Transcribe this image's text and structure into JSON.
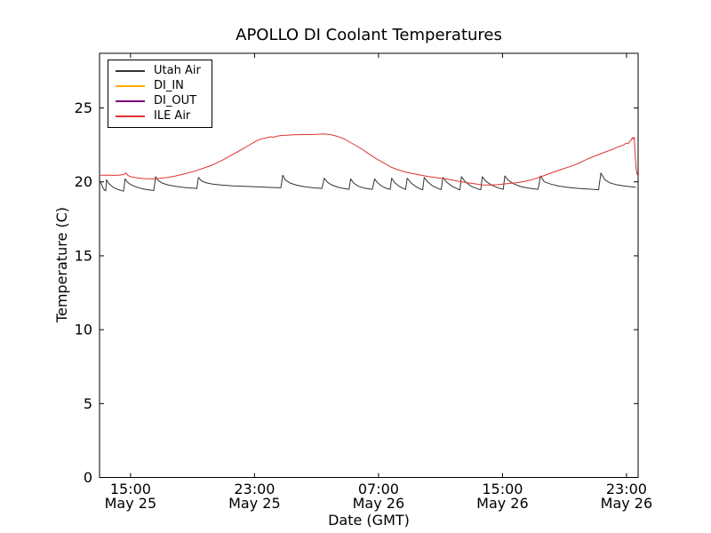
{
  "chart_data": {
    "type": "line",
    "title": "APOLLO DI Coolant Temperatures",
    "xlabel": "Date (GMT)",
    "ylabel": "Temperature (C)",
    "x_unit": "hours since May 25 00:00 GMT",
    "xlim": [
      13.0,
      47.75
    ],
    "ylim": [
      0,
      28.7
    ],
    "grid": false,
    "legend_position": "upper left",
    "yticks": [
      0,
      5,
      10,
      15,
      20,
      25
    ],
    "xticks": [
      {
        "t": 15,
        "time": "15:00",
        "date": "May 25"
      },
      {
        "t": 23,
        "time": "23:00",
        "date": "May 25"
      },
      {
        "t": 31,
        "time": "07:00",
        "date": "May 26"
      },
      {
        "t": 39,
        "time": "15:00",
        "date": "May 26"
      },
      {
        "t": 47,
        "time": "23:00",
        "date": "May 26"
      }
    ],
    "series": [
      {
        "name": "Utah Air",
        "color": "#333333",
        "points": [
          [
            13.05,
            20.05
          ],
          [
            13.12,
            19.85
          ],
          [
            13.22,
            19.6
          ],
          [
            13.32,
            19.45
          ],
          [
            13.4,
            19.4
          ],
          [
            13.45,
            20.15
          ],
          [
            13.55,
            19.95
          ],
          [
            13.7,
            19.8
          ],
          [
            13.9,
            19.62
          ],
          [
            14.15,
            19.5
          ],
          [
            14.45,
            19.4
          ],
          [
            14.55,
            19.37
          ],
          [
            14.65,
            20.2
          ],
          [
            14.8,
            19.98
          ],
          [
            15.0,
            19.82
          ],
          [
            15.3,
            19.68
          ],
          [
            15.7,
            19.55
          ],
          [
            16.1,
            19.47
          ],
          [
            16.5,
            19.42
          ],
          [
            16.62,
            20.35
          ],
          [
            16.8,
            20.08
          ],
          [
            17.05,
            19.92
          ],
          [
            17.4,
            19.8
          ],
          [
            17.9,
            19.7
          ],
          [
            18.5,
            19.62
          ],
          [
            19.1,
            19.57
          ],
          [
            19.28,
            19.55
          ],
          [
            19.38,
            20.3
          ],
          [
            19.6,
            20.05
          ],
          [
            19.9,
            19.93
          ],
          [
            20.3,
            19.85
          ],
          [
            20.9,
            19.78
          ],
          [
            21.6,
            19.73
          ],
          [
            22.4,
            19.7
          ],
          [
            23.3,
            19.66
          ],
          [
            24.2,
            19.62
          ],
          [
            24.7,
            19.6
          ],
          [
            24.82,
            20.45
          ],
          [
            25.0,
            20.12
          ],
          [
            25.3,
            19.92
          ],
          [
            25.7,
            19.78
          ],
          [
            26.2,
            19.68
          ],
          [
            26.8,
            19.6
          ],
          [
            27.35,
            19.56
          ],
          [
            27.5,
            20.25
          ],
          [
            27.7,
            19.98
          ],
          [
            28.0,
            19.78
          ],
          [
            28.4,
            19.63
          ],
          [
            28.8,
            19.55
          ],
          [
            29.1,
            19.5
          ],
          [
            29.2,
            20.2
          ],
          [
            29.4,
            19.92
          ],
          [
            29.7,
            19.7
          ],
          [
            30.1,
            19.57
          ],
          [
            30.6,
            19.5
          ],
          [
            30.75,
            20.2
          ],
          [
            30.95,
            19.93
          ],
          [
            31.2,
            19.72
          ],
          [
            31.5,
            19.57
          ],
          [
            31.75,
            19.5
          ],
          [
            31.85,
            20.25
          ],
          [
            32.05,
            19.95
          ],
          [
            32.3,
            19.72
          ],
          [
            32.6,
            19.55
          ],
          [
            32.75,
            19.5
          ],
          [
            32.85,
            20.25
          ],
          [
            33.1,
            19.93
          ],
          [
            33.4,
            19.68
          ],
          [
            33.75,
            19.5
          ],
          [
            33.85,
            19.47
          ],
          [
            33.95,
            20.3
          ],
          [
            34.2,
            19.97
          ],
          [
            34.5,
            19.72
          ],
          [
            34.9,
            19.53
          ],
          [
            35.05,
            19.48
          ],
          [
            35.15,
            20.3
          ],
          [
            35.4,
            19.98
          ],
          [
            35.75,
            19.7
          ],
          [
            36.15,
            19.5
          ],
          [
            36.25,
            19.46
          ],
          [
            36.35,
            20.35
          ],
          [
            36.6,
            20.0
          ],
          [
            36.95,
            19.72
          ],
          [
            37.4,
            19.52
          ],
          [
            37.6,
            19.47
          ],
          [
            37.7,
            20.35
          ],
          [
            37.95,
            20.02
          ],
          [
            38.3,
            19.78
          ],
          [
            38.75,
            19.58
          ],
          [
            39.05,
            19.5
          ],
          [
            39.15,
            20.4
          ],
          [
            39.4,
            20.08
          ],
          [
            39.75,
            19.85
          ],
          [
            40.2,
            19.68
          ],
          [
            40.8,
            19.56
          ],
          [
            41.3,
            19.5
          ],
          [
            41.45,
            20.4
          ],
          [
            41.7,
            20.0
          ],
          [
            42.1,
            19.85
          ],
          [
            42.6,
            19.72
          ],
          [
            43.2,
            19.63
          ],
          [
            43.9,
            19.56
          ],
          [
            44.6,
            19.51
          ],
          [
            45.2,
            19.47
          ],
          [
            45.35,
            20.6
          ],
          [
            45.6,
            20.15
          ],
          [
            45.9,
            19.95
          ],
          [
            46.3,
            19.82
          ],
          [
            46.8,
            19.73
          ],
          [
            47.3,
            19.67
          ],
          [
            47.6,
            19.63
          ]
        ]
      },
      {
        "name": "DI_IN",
        "color": "#ffaa00",
        "points": []
      },
      {
        "name": "DI_OUT",
        "color": "#7f007f",
        "points": []
      },
      {
        "name": "ILE Air",
        "color": "#e03232",
        "points": [
          [
            13.05,
            20.45
          ],
          [
            13.6,
            20.45
          ],
          [
            14.1,
            20.44
          ],
          [
            14.45,
            20.47
          ],
          [
            14.6,
            20.52
          ],
          [
            14.72,
            20.6
          ],
          [
            14.82,
            20.45
          ],
          [
            15.0,
            20.35
          ],
          [
            15.4,
            20.28
          ],
          [
            15.9,
            20.22
          ],
          [
            16.4,
            20.2
          ],
          [
            16.9,
            20.24
          ],
          [
            17.4,
            20.3
          ],
          [
            17.9,
            20.4
          ],
          [
            18.5,
            20.55
          ],
          [
            19.1,
            20.72
          ],
          [
            19.7,
            20.92
          ],
          [
            20.3,
            21.15
          ],
          [
            20.9,
            21.45
          ],
          [
            21.5,
            21.8
          ],
          [
            22.1,
            22.15
          ],
          [
            22.6,
            22.45
          ],
          [
            23.0,
            22.7
          ],
          [
            23.35,
            22.88
          ],
          [
            23.6,
            22.95
          ],
          [
            23.85,
            23.0
          ],
          [
            24.05,
            23.05
          ],
          [
            24.25,
            23.02
          ],
          [
            24.45,
            23.1
          ],
          [
            24.75,
            23.14
          ],
          [
            25.1,
            23.15
          ],
          [
            25.5,
            23.18
          ],
          [
            26.0,
            23.2
          ],
          [
            26.5,
            23.2
          ],
          [
            27.0,
            23.22
          ],
          [
            27.45,
            23.25
          ],
          [
            27.9,
            23.2
          ],
          [
            28.35,
            23.08
          ],
          [
            28.8,
            22.9
          ],
          [
            29.3,
            22.6
          ],
          [
            29.8,
            22.3
          ],
          [
            30.3,
            21.95
          ],
          [
            30.8,
            21.6
          ],
          [
            31.3,
            21.3
          ],
          [
            31.8,
            21.0
          ],
          [
            32.3,
            20.8
          ],
          [
            32.9,
            20.62
          ],
          [
            33.5,
            20.5
          ],
          [
            34.1,
            20.38
          ],
          [
            34.8,
            20.28
          ],
          [
            35.5,
            20.18
          ],
          [
            36.1,
            20.05
          ],
          [
            36.7,
            19.95
          ],
          [
            37.2,
            19.87
          ],
          [
            37.7,
            19.8
          ],
          [
            38.2,
            19.79
          ],
          [
            38.7,
            19.82
          ],
          [
            39.2,
            19.87
          ],
          [
            39.8,
            19.93
          ],
          [
            40.4,
            20.02
          ],
          [
            41.0,
            20.18
          ],
          [
            41.6,
            20.4
          ],
          [
            42.2,
            20.62
          ],
          [
            42.8,
            20.85
          ],
          [
            43.4,
            21.05
          ],
          [
            44.0,
            21.3
          ],
          [
            44.6,
            21.6
          ],
          [
            45.2,
            21.85
          ],
          [
            45.7,
            22.05
          ],
          [
            46.1,
            22.2
          ],
          [
            46.5,
            22.38
          ],
          [
            46.8,
            22.5
          ],
          [
            47.0,
            22.62
          ],
          [
            47.1,
            22.58
          ],
          [
            47.2,
            22.72
          ],
          [
            47.3,
            22.82
          ],
          [
            47.38,
            23.0
          ],
          [
            47.44,
            22.9
          ],
          [
            47.5,
            23.02
          ],
          [
            47.56,
            21.8
          ],
          [
            47.63,
            20.8
          ],
          [
            47.7,
            20.5
          ],
          [
            47.75,
            20.38
          ]
        ]
      }
    ]
  }
}
